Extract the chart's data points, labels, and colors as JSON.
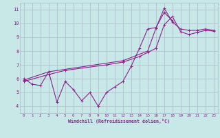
{
  "bg_color": "#c8e8e8",
  "grid_color": "#b0b8d0",
  "line_color": "#882288",
  "xlabel": "Windchill (Refroidissement éolien,°C)",
  "xlabel_color": "#882288",
  "tick_color": "#882288",
  "xlim": [
    -0.5,
    23.5
  ],
  "ylim": [
    3.5,
    11.5
  ],
  "xticks": [
    0,
    1,
    2,
    3,
    4,
    5,
    6,
    7,
    8,
    9,
    10,
    11,
    12,
    13,
    14,
    15,
    16,
    17,
    18,
    19,
    20,
    21,
    22,
    23
  ],
  "yticks": [
    4,
    5,
    6,
    7,
    8,
    9,
    10,
    11
  ],
  "line1_x": [
    0,
    1,
    2,
    3,
    4,
    5,
    6,
    7,
    8,
    9,
    10,
    11,
    12,
    13,
    14,
    15,
    16,
    17,
    18
  ],
  "line1_y": [
    6.0,
    5.6,
    5.5,
    6.5,
    4.3,
    5.8,
    5.2,
    4.4,
    5.0,
    4.0,
    5.0,
    5.4,
    5.8,
    6.9,
    8.2,
    9.6,
    9.7,
    10.8,
    10.2
  ],
  "line2_x": [
    0,
    3,
    12,
    15,
    16,
    17,
    18,
    19,
    20,
    21,
    22,
    23
  ],
  "line2_y": [
    5.9,
    6.5,
    7.3,
    8.0,
    9.65,
    11.1,
    10.1,
    9.6,
    9.5,
    9.5,
    9.6,
    9.5
  ],
  "line3_x": [
    0,
    3,
    5,
    10,
    12,
    14,
    15,
    16,
    17,
    18,
    19,
    20,
    21,
    22,
    23
  ],
  "line3_y": [
    5.8,
    6.3,
    6.6,
    7.0,
    7.2,
    7.6,
    7.9,
    8.2,
    9.9,
    10.5,
    9.4,
    9.2,
    9.35,
    9.5,
    9.45
  ]
}
